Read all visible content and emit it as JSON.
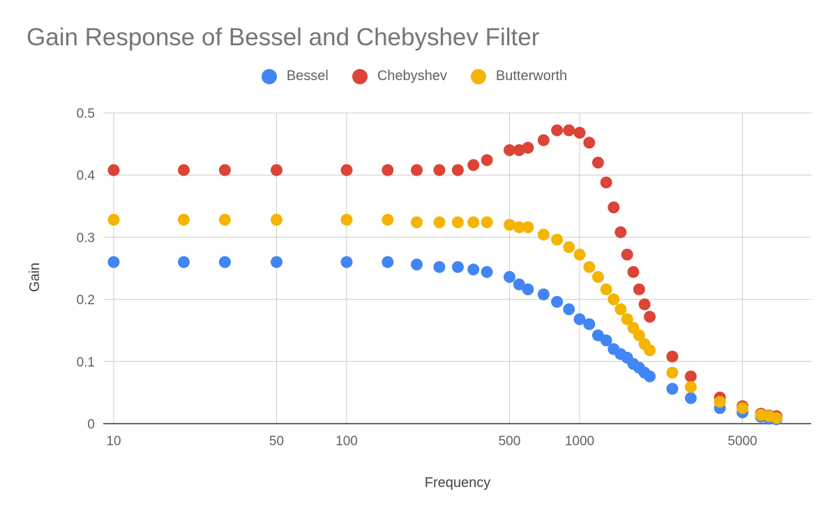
{
  "chart_data": {
    "type": "scatter",
    "title": "Gain Response of Bessel and Chebyshev Filter",
    "xlabel": "Frequency",
    "ylabel": "Gain",
    "x_scale": "log",
    "xlim": [
      10,
      7000
    ],
    "ylim": [
      0,
      0.5
    ],
    "x_ticks": [
      10,
      50,
      100,
      500,
      1000,
      5000
    ],
    "x_tick_labels": [
      "10",
      "50",
      "100",
      "500",
      "1000",
      "5000"
    ],
    "y_ticks": [
      0,
      0.1,
      0.2,
      0.3,
      0.4,
      0.5
    ],
    "y_tick_labels": [
      "0",
      "0.1",
      "0.2",
      "0.3",
      "0.4",
      "0.5"
    ],
    "grid": true,
    "legend_position": "top",
    "series": [
      {
        "name": "Bessel",
        "color": "#4285f4",
        "x": [
          10,
          20,
          30,
          50,
          100,
          150,
          200,
          250,
          300,
          350,
          400,
          500,
          550,
          600,
          700,
          800,
          900,
          1000,
          1100,
          1200,
          1300,
          1400,
          1500,
          1600,
          1700,
          1800,
          1900,
          2000,
          2500,
          3000,
          4000,
          5000,
          6000,
          6500,
          7000
        ],
        "y": [
          0.26,
          0.26,
          0.26,
          0.26,
          0.26,
          0.26,
          0.256,
          0.252,
          0.252,
          0.248,
          0.244,
          0.236,
          0.224,
          0.216,
          0.208,
          0.196,
          0.184,
          0.168,
          0.16,
          0.142,
          0.134,
          0.12,
          0.112,
          0.106,
          0.096,
          0.09,
          0.082,
          0.076,
          0.056,
          0.041,
          0.025,
          0.018,
          0.011,
          0.008,
          0.007
        ]
      },
      {
        "name": "Chebyshev",
        "color": "#db4437",
        "x": [
          10,
          20,
          30,
          50,
          100,
          150,
          200,
          250,
          300,
          350,
          400,
          500,
          550,
          600,
          700,
          800,
          900,
          1000,
          1100,
          1200,
          1300,
          1400,
          1500,
          1600,
          1700,
          1800,
          1900,
          2000,
          2500,
          3000,
          4000,
          5000,
          6000,
          6500,
          7000
        ],
        "y": [
          0.408,
          0.408,
          0.408,
          0.408,
          0.408,
          0.408,
          0.408,
          0.408,
          0.408,
          0.416,
          0.424,
          0.44,
          0.44,
          0.444,
          0.456,
          0.472,
          0.472,
          0.468,
          0.452,
          0.42,
          0.388,
          0.348,
          0.308,
          0.272,
          0.244,
          0.216,
          0.192,
          0.172,
          0.108,
          0.076,
          0.042,
          0.028,
          0.016,
          0.013,
          0.012
        ]
      },
      {
        "name": "Butterworth",
        "color": "#f4b400",
        "x": [
          10,
          20,
          30,
          50,
          100,
          150,
          200,
          250,
          300,
          350,
          400,
          500,
          550,
          600,
          700,
          800,
          900,
          1000,
          1100,
          1200,
          1300,
          1400,
          1500,
          1600,
          1700,
          1800,
          1900,
          2000,
          2500,
          3000,
          4000,
          5000,
          6000,
          6500,
          7000
        ],
        "y": [
          0.328,
          0.328,
          0.328,
          0.328,
          0.328,
          0.328,
          0.324,
          0.324,
          0.324,
          0.324,
          0.324,
          0.32,
          0.316,
          0.316,
          0.304,
          0.296,
          0.284,
          0.272,
          0.252,
          0.236,
          0.216,
          0.2,
          0.184,
          0.168,
          0.154,
          0.142,
          0.128,
          0.118,
          0.082,
          0.059,
          0.035,
          0.025,
          0.014,
          0.012,
          0.009
        ]
      }
    ]
  }
}
